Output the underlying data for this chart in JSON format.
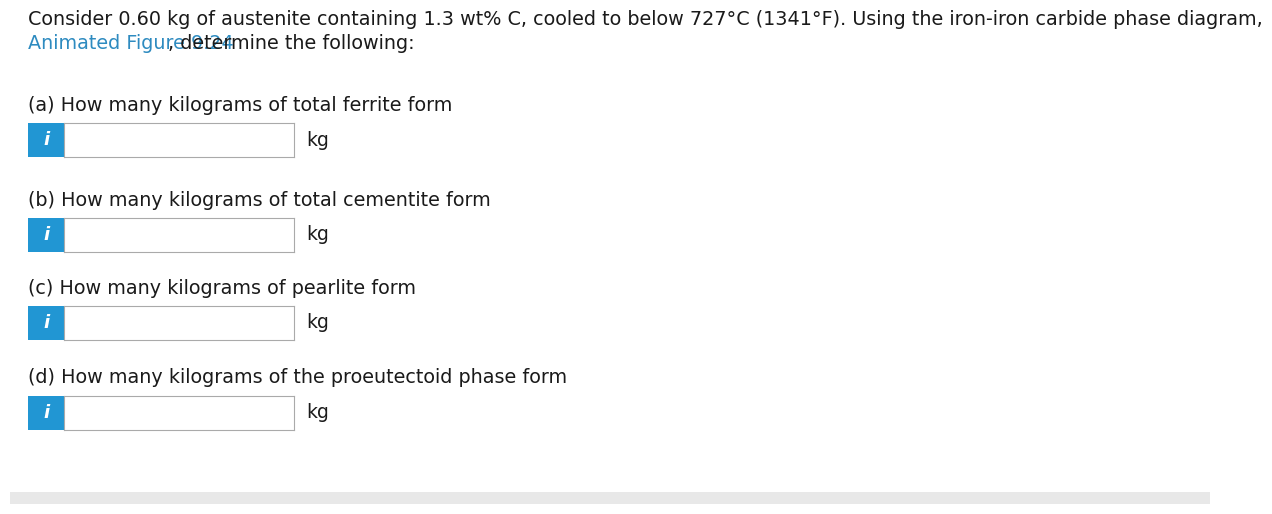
{
  "title_line1": "Consider 0.60 kg of austenite containing 1.3 wt% C, cooled to below 727°C (1341°F). Using the iron-iron carbide phase diagram,",
  "title_line2_link": "Animated Figure 9.24",
  "title_line2_rest": ", determine the following:",
  "questions": [
    "(a) How many kilograms of total ferrite form",
    "(b) How many kilograms of total cementite form",
    "(c) How many kilograms of pearlite form",
    "(d) How many kilograms of the proeutectoid phase form"
  ],
  "unit": "kg",
  "bg_color": "#ffffff",
  "text_color": "#1a1a1a",
  "link_color": "#2e8bc0",
  "input_box_color": "#ffffff",
  "input_box_border": "#aaaaaa",
  "info_btn_color": "#2196d3",
  "info_btn_text": "i",
  "info_btn_text_color": "#ffffff",
  "bottom_bar_color": "#e8e8e8",
  "font_size_title": 13.8,
  "font_size_question": 13.8,
  "font_size_unit": 13.5,
  "font_size_info": 13.0
}
